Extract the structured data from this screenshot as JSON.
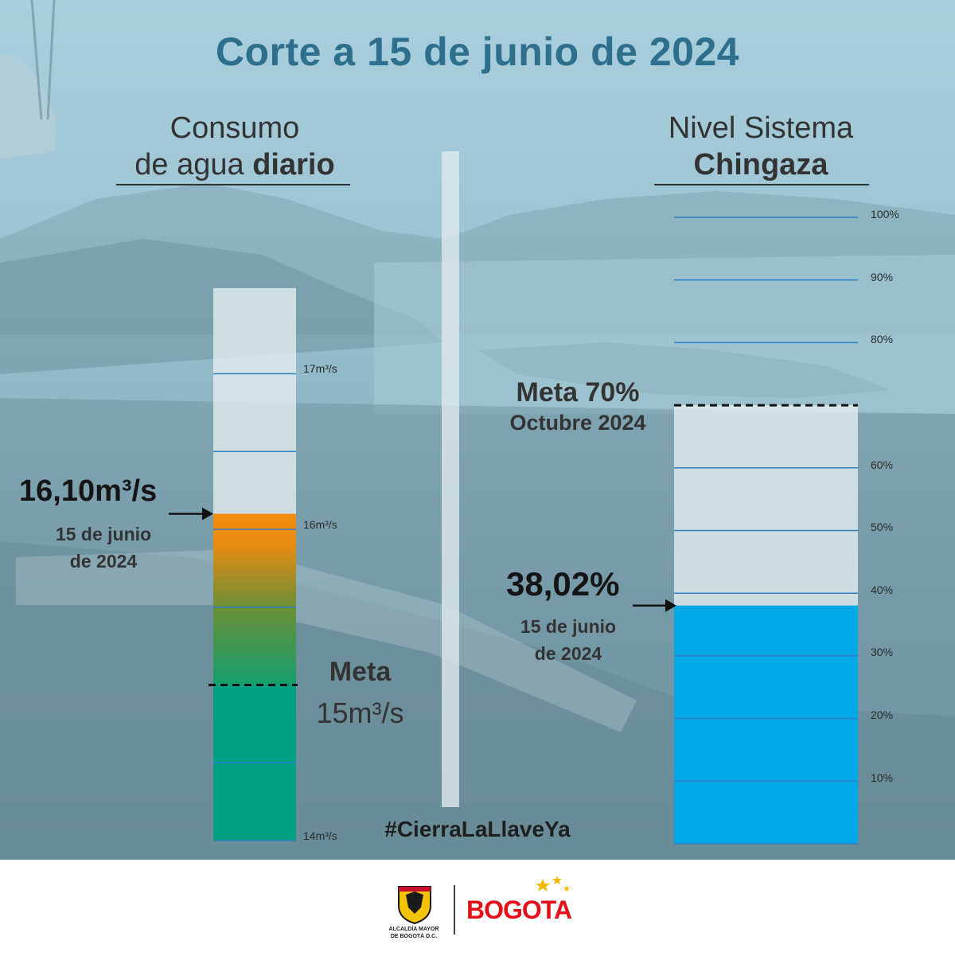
{
  "title": "Corte a 15 de junio de 2024",
  "left_panel": {
    "title_line1": "Consumo",
    "title_line2_regular": "de agua ",
    "title_line2_bold": "diario",
    "value": "16,10m³/s",
    "date_line1": "15 de junio",
    "date_line2": "de 2024",
    "meta_line1": "Meta",
    "meta_line2": "15m³/s",
    "tick_labels": [
      "17m³/s",
      "16m³/s",
      "14m³/s"
    ]
  },
  "right_panel": {
    "title_line1": "Nivel Sistema",
    "title_line2_bold": "Chingaza",
    "value": "38,02%",
    "date_line1": "15 de junio",
    "date_line2": "de 2024",
    "meta_line1": "Meta 70%",
    "meta_line2": "Octubre 2024",
    "tick_labels": [
      "100%",
      "90%",
      "80%",
      "60%",
      "50%",
      "40%",
      "30%",
      "20%",
      "10%"
    ]
  },
  "hashtag": "#CierraLaLlaveYa",
  "footer": {
    "left_logo_text_line1": "ALCALDÍA MAYOR",
    "left_logo_text_line2": "DE BOGOTÁ D.C.",
    "right_logo_text": "BOGOTA"
  },
  "chart_data": [
    {
      "type": "bar",
      "title": "Consumo de agua diario",
      "unit": "m³/s",
      "categories": [
        "15 de junio de 2024"
      ],
      "values": [
        16.1
      ],
      "target": 15,
      "ylim": [
        14,
        17.5
      ],
      "yticks": [
        14,
        16,
        17
      ],
      "colors": {
        "above_target": "#f28c0f",
        "below_target": "#00a183",
        "empty": "#e6eef1",
        "gridline": "#2f7fc6"
      }
    },
    {
      "type": "bar",
      "title": "Nivel Sistema Chingaza",
      "unit": "%",
      "categories": [
        "15 de junio de 2024"
      ],
      "values": [
        38.02
      ],
      "target": 70,
      "target_date": "Octubre 2024",
      "ylim": [
        0,
        100
      ],
      "yticks": [
        10,
        20,
        30,
        40,
        50,
        60,
        80,
        90,
        100
      ],
      "colors": {
        "fill": "#00a8e6",
        "empty": "#e6eef1",
        "gridline": "#2f7fc6"
      }
    }
  ]
}
